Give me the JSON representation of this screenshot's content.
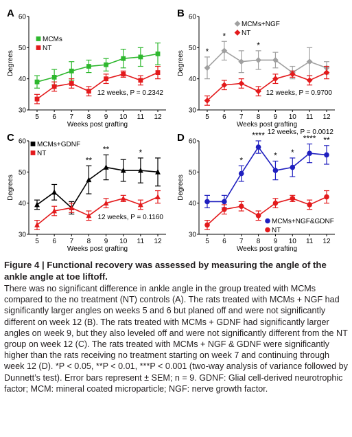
{
  "chart_data": [
    {
      "panel": "A",
      "type": "line",
      "xlabel": "Weeks post grafting",
      "ylabel": "Degrees",
      "x": [
        5,
        6,
        7,
        8,
        9,
        10,
        11,
        12
      ],
      "ylim": [
        30,
        60
      ],
      "yticks": [
        30,
        40,
        50,
        60
      ],
      "legend_location": "top-left",
      "series": [
        {
          "name": "MCMs",
          "color": "#2eb82e",
          "marker": "square",
          "values": [
            39,
            40.5,
            42.5,
            44,
            44.5,
            46.5,
            47,
            48
          ],
          "errors": [
            2,
            2.5,
            3,
            2,
            2,
            3,
            3,
            3.5
          ]
        },
        {
          "name": "NT",
          "color": "#e31a1c",
          "marker": "square",
          "values": [
            33.5,
            37.5,
            38.5,
            36,
            40,
            41.5,
            39.5,
            42
          ],
          "errors": [
            1.5,
            1.5,
            1.5,
            1.5,
            1.5,
            1,
            1.5,
            2
          ]
        }
      ],
      "annotation": "12 weeks, P = 0.2342",
      "significance": []
    },
    {
      "panel": "B",
      "type": "line",
      "xlabel": "Weeks post grafting",
      "ylabel": "Degrees",
      "x": [
        5,
        6,
        7,
        8,
        9,
        10,
        11,
        12
      ],
      "ylim": [
        30,
        60
      ],
      "yticks": [
        30,
        40,
        50,
        60
      ],
      "legend_location": "top-center",
      "series": [
        {
          "name": "MCMs+NGF",
          "color": "#a0a0a0",
          "marker": "diamond",
          "values": [
            43.5,
            49,
            45.5,
            46,
            46,
            42,
            45.5,
            43.5
          ],
          "errors": [
            3.5,
            3,
            3.5,
            3,
            2.5,
            2,
            4.5,
            2
          ]
        },
        {
          "name": "NT",
          "color": "#e31a1c",
          "marker": "diamond",
          "values": [
            33,
            38,
            38.5,
            36,
            40,
            41.5,
            39.5,
            42
          ],
          "errors": [
            1.5,
            1.5,
            1.5,
            1.5,
            1.5,
            1,
            1.5,
            2
          ]
        }
      ],
      "annotation": "12 weeks, P = 0.9700",
      "significance": [
        {
          "x": 5,
          "label": "*"
        },
        {
          "x": 6,
          "label": "*"
        },
        {
          "x": 8,
          "label": "*"
        }
      ]
    },
    {
      "panel": "C",
      "type": "line",
      "xlabel": "Weeks post grafting",
      "ylabel": "Degrees",
      "x": [
        5,
        6,
        7,
        8,
        9,
        10,
        11,
        12
      ],
      "ylim": [
        30,
        60
      ],
      "yticks": [
        30,
        40,
        50,
        60
      ],
      "legend_location": "top-left",
      "series": [
        {
          "name": "MCMs+GDNF",
          "color": "#000000",
          "marker": "triangle",
          "values": [
            39.5,
            43.5,
            38.5,
            47.5,
            51.5,
            50.5,
            50.5,
            50
          ],
          "errors": [
            1.5,
            2.5,
            2,
            4.5,
            4,
            3.5,
            4,
            4.5
          ]
        },
        {
          "name": "NT",
          "color": "#e31a1c",
          "marker": "triangle",
          "values": [
            33,
            37.5,
            38.5,
            36,
            40,
            41.5,
            39.5,
            42
          ],
          "errors": [
            1.5,
            1.5,
            1.5,
            1.5,
            1.5,
            1,
            1.5,
            2
          ]
        }
      ],
      "annotation": "12 weeks, P = 0.1160",
      "significance": [
        {
          "x": 8,
          "label": "**"
        },
        {
          "x": 9,
          "label": "**"
        },
        {
          "x": 11,
          "label": "*"
        }
      ]
    },
    {
      "panel": "D",
      "type": "line",
      "xlabel": "Weeks post grafting",
      "ylabel": "Degrees",
      "x": [
        5,
        6,
        7,
        8,
        9,
        10,
        11,
        12
      ],
      "ylim": [
        30,
        60
      ],
      "yticks": [
        30,
        40,
        50,
        60
      ],
      "legend_location": "bottom-right",
      "series": [
        {
          "name": "MCMs+NGF&GDNF",
          "color": "#1f1fbf",
          "marker": "circle",
          "values": [
            40.5,
            40.5,
            49.5,
            58,
            50.5,
            51.5,
            56,
            55.5
          ],
          "errors": [
            2,
            2,
            2.5,
            2,
            3,
            3,
            3,
            3
          ]
        },
        {
          "name": "NT",
          "color": "#e31a1c",
          "marker": "circle",
          "values": [
            33,
            38,
            39,
            36,
            40,
            41.5,
            39.5,
            42
          ],
          "errors": [
            1.5,
            1.5,
            1.5,
            1.5,
            1.5,
            1,
            1.5,
            2
          ]
        }
      ],
      "annotation": "12 weeks, P = 0.0012",
      "significance": [
        {
          "x": 7,
          "label": "*"
        },
        {
          "x": 8,
          "label": "****"
        },
        {
          "x": 9,
          "label": "*"
        },
        {
          "x": 10,
          "label": "*"
        },
        {
          "x": 11,
          "label": "****"
        },
        {
          "x": 12,
          "label": "**"
        }
      ]
    }
  ],
  "caption": {
    "title": "Figure 4  |  Functional recovery was assessed by measuring the angle of the ankle angle at toe liftoff.",
    "body": "There was no significant difference in ankle angle in the group treated with MCMs compared to the no treatment (NT) controls (A). The rats treated with MCMs + NGF had significantly larger angles on weeks 5 and 6 but planed off and were not significantly different on week 12 (B). The rats treated with MCMs + GDNF had significantly larger angles on week 9, but they also leveled off and were not significantly different from the NT group on week 12 (C). The rats treated with MCMs + NGF & GDNF were significantly higher than the rats receiving no treatment starting on week 7 and continuing through week 12 (D). *P < 0.05, **P < 0.01, ***P < 0.001 (two-way analysis of variance followed by Dunnett’s test). Error bars represent ± SEM; n = 9. GDNF: Glial cell-derived neurotrophic factor; MCM: mineral coated microparticle; NGF: nerve growth factor."
  }
}
